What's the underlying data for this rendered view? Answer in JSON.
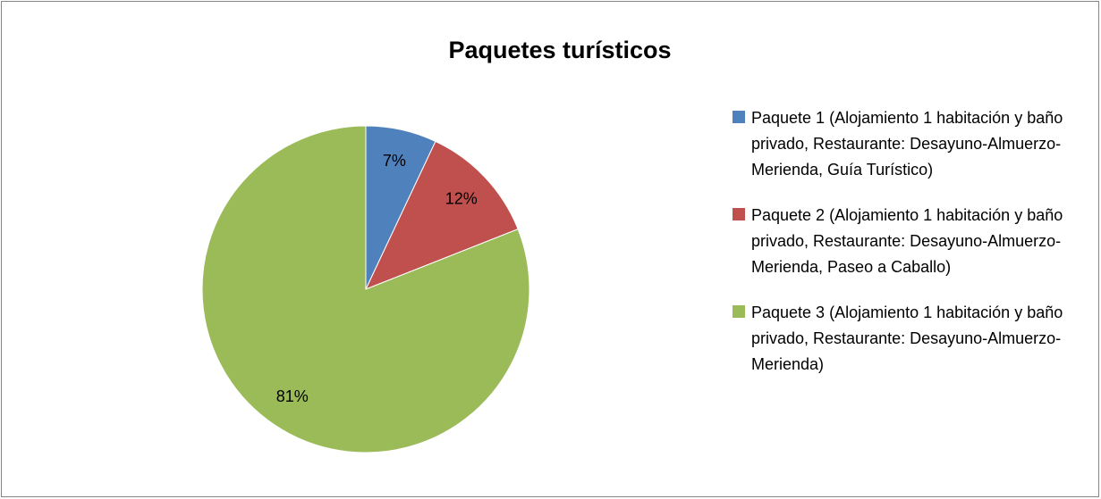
{
  "chart_data": {
    "type": "pie",
    "title": "Paquetes turísticos",
    "categories": [
      "Paquete 1 (Alojamiento 1 habitación y baño privado, Restaurante: Desayuno-Almuerzo-Merienda, Guía Turístico)",
      "Paquete 2 (Alojamiento 1 habitación y baño privado, Restaurante: Desayuno-Almuerzo-Merienda, Paseo a Caballo)",
      "Paquete 3 (Alojamiento 1 habitación y baño privado, Restaurante: Desayuno-Almuerzo-Merienda)"
    ],
    "values": [
      7,
      12,
      81
    ],
    "value_labels": [
      "7%",
      "12%",
      "81%"
    ],
    "colors": [
      "#4f81bd",
      "#c0504d",
      "#9bbb59"
    ],
    "legend": "right"
  }
}
